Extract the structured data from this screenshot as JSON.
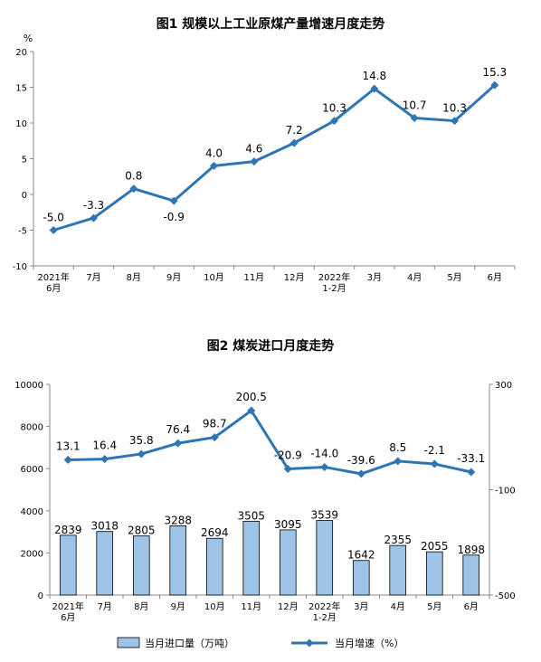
{
  "chart_data": [
    {
      "type": "line",
      "title": "图1 规模以上工业原煤产量增速月度走势",
      "ylabel": "%",
      "ylim": [
        -10,
        20
      ],
      "yticks": [
        -10,
        -5,
        0,
        5,
        10,
        15,
        20
      ],
      "categories": [
        "2021年\n6月",
        "7月",
        "8月",
        "9月",
        "10月",
        "11月",
        "12月",
        "2022年\n1-2月",
        "3月",
        "4月",
        "5月",
        "6月"
      ],
      "series": [
        {
          "values": [
            -5.0,
            -3.3,
            0.8,
            -0.9,
            4.0,
            4.6,
            7.2,
            10.3,
            14.8,
            10.7,
            10.3,
            15.3
          ],
          "labels": [
            "-5.0",
            "-3.3",
            "0.8",
            "-0.9",
            "4.0",
            "4.6",
            "7.2",
            "10.3",
            "14.8",
            "10.7",
            "10.3",
            "15.3"
          ],
          "color": "#2e75b6"
        }
      ]
    },
    {
      "type": "bar",
      "title": "图2 煤炭进口月度走势",
      "ylim": [
        0,
        10000
      ],
      "yticks": [
        0,
        2000,
        4000,
        6000,
        8000,
        10000
      ],
      "y2lim": [
        -500,
        300
      ],
      "y2ticks": [
        -500,
        -100,
        300
      ],
      "categories": [
        "2021年\n6月",
        "7月",
        "8月",
        "9月",
        "10月",
        "11月",
        "12月",
        "2022年\n1-2月",
        "3月",
        "4月",
        "5月",
        "6月"
      ],
      "series": [
        {
          "name": "当月进口量（万吨）",
          "type": "bar",
          "axis": "left",
          "values": [
            2839,
            3018,
            2805,
            3288,
            2694,
            3505,
            3095,
            3539,
            1642,
            2355,
            2055,
            1898
          ],
          "labels": [
            "2839",
            "3018",
            "2805",
            "3288",
            "2694",
            "3505",
            "3095",
            "3539",
            "1642",
            "2355",
            "2055",
            "1898"
          ],
          "color": "#9dc3e6"
        },
        {
          "name": "当月增速（%）",
          "type": "line",
          "axis": "right",
          "values": [
            13.1,
            16.4,
            35.8,
            76.4,
            98.7,
            200.5,
            -20.9,
            -14.0,
            -39.6,
            8.5,
            -2.1,
            -33.1
          ],
          "labels": [
            "13.1",
            "16.4",
            "35.8",
            "76.4",
            "98.7",
            "200.5",
            "-20.9",
            "-14.0",
            "-39.6",
            "8.5",
            "-2.1",
            "-33.1"
          ],
          "color": "#2e75b6"
        }
      ],
      "legend": "bottom"
    }
  ]
}
